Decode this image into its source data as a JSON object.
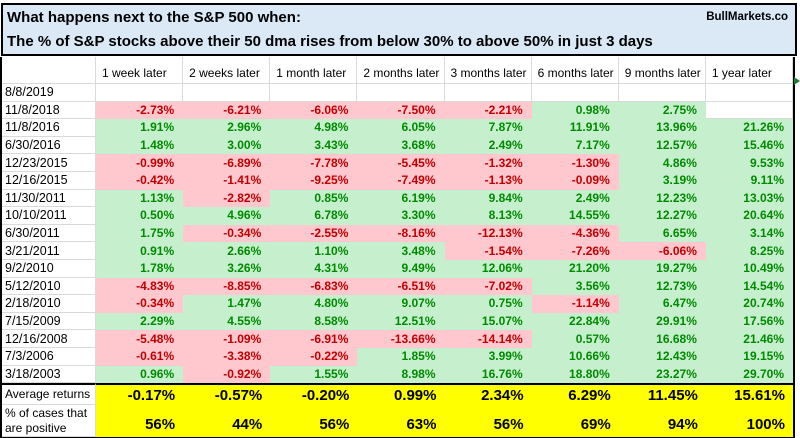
{
  "title": {
    "line1": "What happens next to the S&P 500 when:",
    "line2": "The % of S&P stocks above their 50 dma rises from below 30% to above 50% in just 3 days",
    "brand": "BullMarkets.co"
  },
  "colors": {
    "title_bg": "#DBE9F6",
    "positive_bg": "#C6EFCE",
    "positive_text": "#008A00",
    "negative_bg": "#FFC7CE",
    "negative_text": "#C00000",
    "summary_bg": "#FFFF00",
    "gridline": "#D9D9D9"
  },
  "table": {
    "columns": [
      "1 week later",
      "2 weeks later",
      "1 month later",
      "2 months later",
      "3 months later",
      "6 months later",
      "9 months later",
      "1 year later"
    ],
    "rows": [
      {
        "date": "8/8/2019",
        "values": [
          "",
          "",
          "",
          "",
          "",
          "",
          "",
          ""
        ]
      },
      {
        "date": "11/8/2018",
        "values": [
          "-2.73%",
          "-6.21%",
          "-6.06%",
          "-7.50%",
          "-2.21%",
          "0.98%",
          "2.75%",
          ""
        ]
      },
      {
        "date": "11/8/2016",
        "values": [
          "1.91%",
          "2.96%",
          "4.98%",
          "6.05%",
          "7.87%",
          "11.91%",
          "13.96%",
          "21.26%"
        ]
      },
      {
        "date": "6/30/2016",
        "values": [
          "1.48%",
          "3.00%",
          "3.43%",
          "3.68%",
          "2.49%",
          "7.17%",
          "12.57%",
          "15.46%"
        ]
      },
      {
        "date": "12/23/2015",
        "values": [
          "-0.99%",
          "-6.89%",
          "-7.78%",
          "-5.45%",
          "-1.32%",
          "-1.30%",
          "4.86%",
          "9.53%"
        ]
      },
      {
        "date": "12/16/2015",
        "values": [
          "-0.42%",
          "-1.41%",
          "-9.25%",
          "-7.49%",
          "-1.13%",
          "-0.09%",
          "3.19%",
          "9.11%"
        ]
      },
      {
        "date": "11/30/2011",
        "values": [
          "1.13%",
          "-2.82%",
          "0.85%",
          "6.19%",
          "9.84%",
          "2.49%",
          "12.23%",
          "13.03%"
        ]
      },
      {
        "date": "10/10/2011",
        "values": [
          "0.50%",
          "4.96%",
          "6.78%",
          "3.30%",
          "8.13%",
          "14.55%",
          "12.27%",
          "20.64%"
        ]
      },
      {
        "date": "6/30/2011",
        "values": [
          "1.75%",
          "-0.34%",
          "-2.55%",
          "-8.16%",
          "-12.13%",
          "-4.36%",
          "6.65%",
          "3.14%"
        ]
      },
      {
        "date": "3/21/2011",
        "values": [
          "0.91%",
          "2.66%",
          "1.10%",
          "3.48%",
          "-1.54%",
          "-7.26%",
          "-6.06%",
          "8.25%"
        ]
      },
      {
        "date": "9/2/2010",
        "values": [
          "1.78%",
          "3.26%",
          "4.31%",
          "9.49%",
          "12.06%",
          "21.20%",
          "19.27%",
          "10.49%"
        ]
      },
      {
        "date": "5/12/2010",
        "values": [
          "-4.83%",
          "-8.85%",
          "-6.83%",
          "-6.51%",
          "-7.02%",
          "3.56%",
          "12.73%",
          "14.54%"
        ]
      },
      {
        "date": "2/18/2010",
        "values": [
          "-0.34%",
          "1.47%",
          "4.80%",
          "9.07%",
          "0.75%",
          "-1.14%",
          "6.47%",
          "20.74%"
        ]
      },
      {
        "date": "7/15/2009",
        "values": [
          "2.29%",
          "4.55%",
          "8.58%",
          "12.51%",
          "15.07%",
          "22.84%",
          "29.91%",
          "17.56%"
        ]
      },
      {
        "date": "12/16/2008",
        "values": [
          "-5.48%",
          "-1.09%",
          "-6.91%",
          "-13.66%",
          "-14.14%",
          "0.57%",
          "16.68%",
          "21.46%"
        ]
      },
      {
        "date": "7/3/2006",
        "values": [
          "-0.61%",
          "-3.38%",
          "-0.22%",
          "1.85%",
          "3.99%",
          "10.66%",
          "12.43%",
          "19.15%"
        ]
      },
      {
        "date": "3/18/2003",
        "values": [
          "0.96%",
          "-0.92%",
          "1.55%",
          "8.98%",
          "16.76%",
          "18.80%",
          "23.27%",
          "29.70%"
        ]
      }
    ],
    "summary": [
      {
        "label": "Average returns",
        "values": [
          "-0.17%",
          "-0.57%",
          "-0.20%",
          "0.99%",
          "2.34%",
          "6.29%",
          "11.45%",
          "15.61%"
        ]
      },
      {
        "label": "% of cases that are positive",
        "values": [
          "56%",
          "44%",
          "56%",
          "63%",
          "56%",
          "69%",
          "94%",
          "100%"
        ]
      }
    ]
  }
}
